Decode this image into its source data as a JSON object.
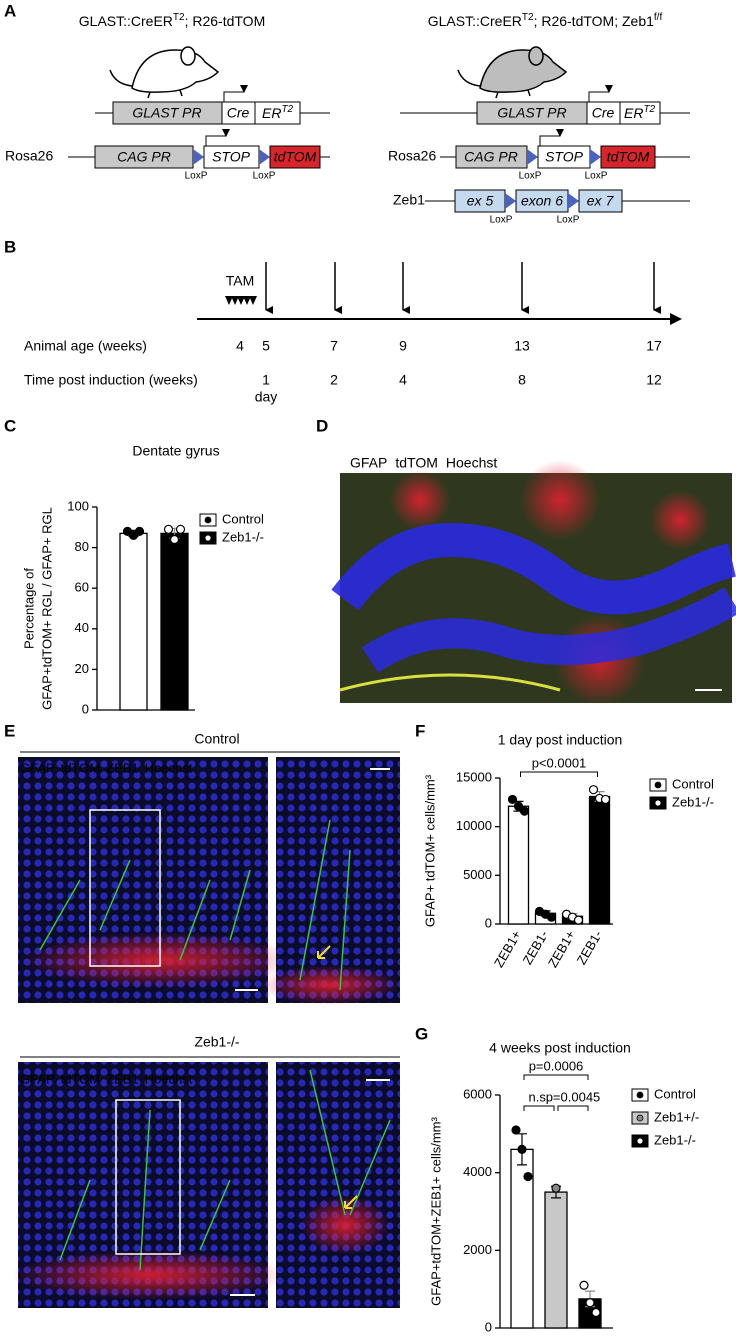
{
  "panel_labels": [
    "A",
    "B",
    "C",
    "D",
    "E",
    "F",
    "G"
  ],
  "panel_a": {
    "left": {
      "title": [
        "GLAST::CreER",
        "T2",
        "; R26-tdTOM"
      ],
      "glast": [
        "GLAST PR",
        "Cre",
        "ER",
        "T2"
      ],
      "rosa_label": "Rosa26",
      "rosa": [
        "CAG PR",
        "STOP",
        "tdTOM"
      ],
      "loxp": [
        "LoxP",
        "LoxP"
      ]
    },
    "right": {
      "title": [
        "GLAST::CreER",
        "T2",
        "; R26-tdTOM; Zeb1",
        "f/f"
      ],
      "glast": [
        "GLAST PR",
        "Cre",
        "ER",
        "T2"
      ],
      "rosa_label": "Rosa26",
      "rosa": [
        "CAG PR",
        "STOP",
        "tdTOM"
      ],
      "loxp": [
        "LoxP",
        "LoxP"
      ],
      "zeb1_label": "Zeb1",
      "zeb1": [
        "ex 5",
        "exon 6",
        "ex 7"
      ],
      "zeb1_loxp": [
        "LoxP",
        "LoxP"
      ]
    }
  },
  "panel_b": {
    "tam": "TAM",
    "age_label": "Animal age (weeks)",
    "age": [
      4,
      5,
      7,
      9,
      13,
      17
    ],
    "post_label": "Time post induction (weeks)",
    "post": [
      1,
      2,
      4,
      8,
      12
    ],
    "post_note": "day"
  },
  "panel_d": {
    "channels": [
      {
        "name": "GFAP",
        "color": "#2e9e3a"
      },
      {
        "name": "tdTOM",
        "color": "#d0202a"
      },
      {
        "name": "Hoechst",
        "color": "#2a2ae0"
      }
    ]
  },
  "panel_e": {
    "groups": [
      {
        "title": "Control",
        "channels": [
          {
            "name": "GFAP",
            "color": "#2e9e3a"
          },
          {
            "name": "tdTOM",
            "color": "#d0202a"
          },
          {
            "name": "ZEB1",
            "color": "#ffffff"
          },
          {
            "name": "Hoechst",
            "color": "#2a2ae0"
          }
        ]
      },
      {
        "title": "Zeb1-/-",
        "channels": [
          {
            "name": "GFAP",
            "color": "#2e9e3a"
          },
          {
            "name": "tdTOM",
            "color": "#d0202a"
          },
          {
            "name": "ZEB1",
            "color": "#ffffff"
          },
          {
            "name": "Hoechst",
            "color": "#2a2ae0"
          }
        ]
      }
    ]
  },
  "chart_data": [
    {
      "type": "bar",
      "title": "Dentate gyrus",
      "ylabel": [
        "Percentage of",
        "GFAP+tdTOM+ RGL / GFAP+ RGL"
      ],
      "categories": [
        null
      ],
      "ylim": [
        0,
        100
      ],
      "yticks": [
        0,
        20,
        40,
        60,
        80,
        100
      ],
      "series": [
        {
          "name": "Control",
          "color": "#ffffff",
          "point_color": "#000000",
          "values": [
            87
          ],
          "errors": [
            1.5
          ],
          "points": [
            [
              88,
              86,
              88
            ]
          ]
        },
        {
          "name": "Zeb1-/-",
          "color": "#000000",
          "point_color": "#ffffff",
          "values": [
            87
          ],
          "errors": [
            2.5
          ],
          "points": [
            [
              89,
              84,
              89
            ]
          ]
        }
      ]
    },
    {
      "type": "bar",
      "title": "1 day post induction",
      "ylabel": [
        "GFAP+ tdTOM+ cells/mm³"
      ],
      "categories": [
        "ZEB1+",
        "ZEB1-",
        "ZEB1+",
        "ZEB1-"
      ],
      "ylim": [
        0,
        15000
      ],
      "yticks": [
        0,
        5000,
        10000,
        15000
      ],
      "annotations": [
        "p<0.0001"
      ],
      "series": [
        {
          "name": "Control",
          "color": "#ffffff",
          "point_color": "#000000",
          "values": [
            12100,
            1100,
            null,
            null
          ],
          "errors": [
            500,
            250,
            null,
            null
          ],
          "points": [
            [
              12800,
              12100,
              11600
            ],
            [
              1300,
              1000,
              700
            ],
            null,
            null
          ]
        },
        {
          "name": "Zeb1-/-",
          "color": "#000000",
          "point_color": "#ffffff",
          "values": [
            null,
            null,
            800,
            13100
          ],
          "errors": [
            null,
            null,
            250,
            500
          ],
          "points": [
            null,
            null,
            [
              1000,
              700,
              400
            ],
            [
              13800,
              12900,
              12800
            ]
          ]
        }
      ]
    },
    {
      "type": "bar",
      "title": "4 weeks post induction",
      "ylabel": [
        "GFAP+tdTOM+ZEB1+ cells/mm³"
      ],
      "categories": [
        null
      ],
      "ylim": [
        0,
        6000
      ],
      "yticks": [
        0,
        2000,
        4000,
        6000
      ],
      "annotations": [
        "p=0.0006",
        "n.s.",
        "p=0.0045"
      ],
      "series": [
        {
          "name": "Control",
          "color": "#ffffff",
          "point_color": "#000000",
          "values": [
            4600
          ],
          "errors": [
            400
          ],
          "points": [
            [
              5100,
              4600,
              3900
            ]
          ]
        },
        {
          "name": "Zeb1+/-",
          "color": "#c8c8c8",
          "point_color": "#888888",
          "values": [
            3500
          ],
          "errors": [
            150
          ],
          "points": [
            [
              3600
            ]
          ]
        },
        {
          "name": "Zeb1-/-",
          "color": "#000000",
          "point_color": "#ffffff",
          "values": [
            750
          ],
          "errors": [
            200
          ],
          "points": [
            [
              1100,
              650,
              400
            ]
          ]
        }
      ]
    }
  ]
}
